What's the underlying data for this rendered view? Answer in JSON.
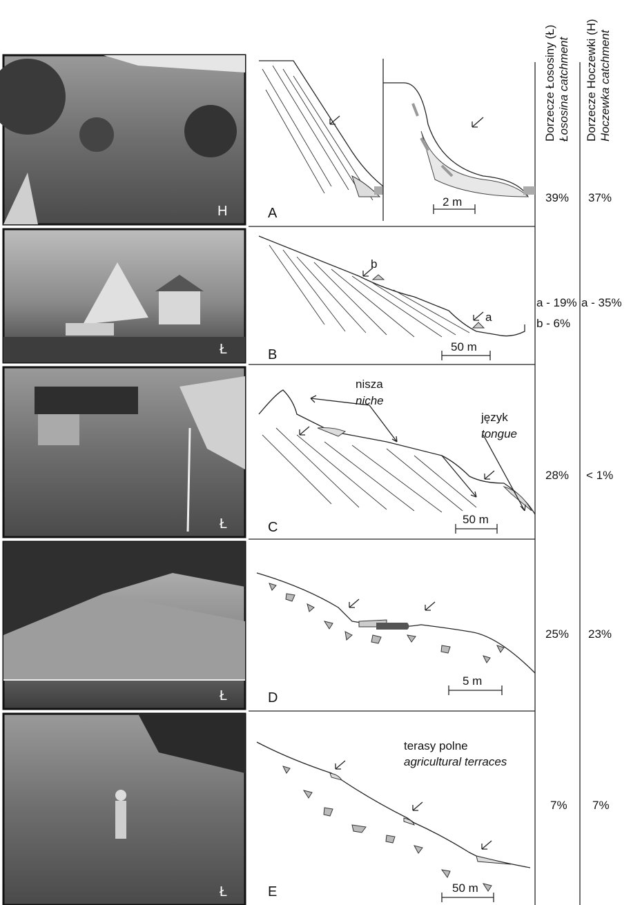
{
  "header": {
    "col1": {
      "pl": "Dorzecze Łososiny (Ł)",
      "en": "Łososina catchment"
    },
    "col2": {
      "pl": "Dorzecze Hoczewki (H)",
      "en": "Hoczewka catchment"
    }
  },
  "rows": [
    {
      "photo_label": "H",
      "panel": "A",
      "scale": "2 m",
      "share_l": [
        "39%"
      ],
      "share_h": [
        "37%"
      ]
    },
    {
      "photo_label": "Ł",
      "panel": "B",
      "scale": "50 m",
      "markers": [
        "b",
        "a"
      ],
      "share_l": [
        "a - 19%",
        "b - 6%"
      ],
      "share_h": [
        "a - 35%"
      ]
    },
    {
      "photo_label": "Ł",
      "panel": "C",
      "scale": "50 m",
      "annotations": [
        {
          "pl": "nisza",
          "en": "niche"
        },
        {
          "pl": "język",
          "en": "tongue"
        }
      ],
      "share_l": [
        "28%"
      ],
      "share_h": [
        "< 1%"
      ]
    },
    {
      "photo_label": "Ł",
      "panel": "D",
      "scale": "5 m",
      "share_l": [
        "25%"
      ],
      "share_h": [
        "23%"
      ]
    },
    {
      "photo_label": "Ł",
      "panel": "E",
      "scale": "50 m",
      "annotations": [
        {
          "pl": "terasy polne",
          "en": "agricultural terraces"
        }
      ],
      "share_l": [
        "7%"
      ],
      "share_h": [
        "7%"
      ]
    }
  ]
}
